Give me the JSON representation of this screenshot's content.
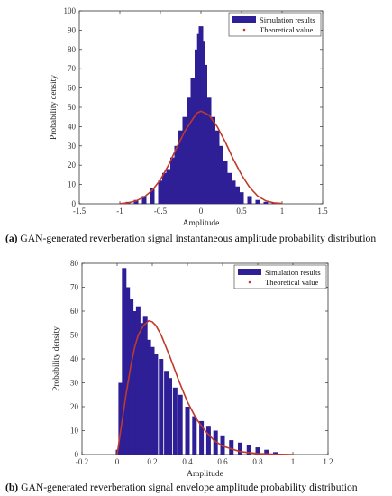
{
  "colors": {
    "bar": "#2e1f96",
    "curve": "#c0392b",
    "axis": "#333333"
  },
  "charts": [
    {
      "caption_label": "(a)",
      "caption_text": " GAN-generated reverberation signal instantaneous amplitude probability distribution"
    },
    {
      "caption_label": "(b)",
      "caption_text": " GAN-generated reverberation signal envelope amplitude probability distribution"
    }
  ],
  "chart_data": [
    {
      "type": "bar",
      "title": "",
      "xlabel": "Amplitude",
      "ylabel": "Probability density",
      "xlim": [
        -1.5,
        1.5
      ],
      "ylim": [
        0,
        100
      ],
      "xticks": [
        "-1.5",
        "-1",
        "-0.5",
        "0",
        "0.5",
        "1",
        "1.5"
      ],
      "yticks": [
        "0",
        "10",
        "20",
        "30",
        "40",
        "50",
        "60",
        "70",
        "80",
        "90",
        "100"
      ],
      "legend_position": "top-right",
      "series": [
        {
          "name": "Simulation results",
          "kind": "histogram",
          "x": [
            -0.9,
            -0.8,
            -0.7,
            -0.6,
            -0.5,
            -0.45,
            -0.4,
            -0.35,
            -0.3,
            -0.25,
            -0.2,
            -0.15,
            -0.1,
            -0.05,
            -0.02,
            0.0,
            0.02,
            0.05,
            0.1,
            0.15,
            0.2,
            0.25,
            0.3,
            0.35,
            0.4,
            0.45,
            0.5,
            0.6,
            0.7,
            0.8,
            0.9
          ],
          "values": [
            1,
            2,
            4,
            8,
            12,
            16,
            18,
            24,
            30,
            38,
            45,
            55,
            65,
            80,
            88,
            92,
            84,
            72,
            55,
            45,
            38,
            30,
            22,
            16,
            12,
            9,
            6,
            4,
            2,
            1,
            0.5
          ]
        },
        {
          "name": "Theoretical value",
          "kind": "curve",
          "x": [
            -1.0,
            -0.9,
            -0.8,
            -0.7,
            -0.6,
            -0.5,
            -0.4,
            -0.3,
            -0.2,
            -0.1,
            -0.05,
            0.0,
            0.1,
            0.2,
            0.3,
            0.4,
            0.5,
            0.6,
            0.7,
            0.8,
            0.9,
            1.0
          ],
          "values": [
            0.1,
            0.5,
            1.5,
            3.5,
            7,
            12.5,
            20,
            29,
            37.5,
            44,
            47,
            48,
            46,
            40,
            32,
            23,
            15,
            8.5,
            4,
            1.5,
            0.5,
            0.2
          ]
        }
      ]
    },
    {
      "type": "bar",
      "title": "",
      "xlabel": "Amplitude",
      "ylabel": "Probability density",
      "xlim": [
        -0.2,
        1.2
      ],
      "ylim": [
        0,
        80
      ],
      "xticks": [
        "-0.2",
        "0",
        "0.2",
        "0.4",
        "0.6",
        "0.8",
        "1",
        "1.2"
      ],
      "yticks": [
        "0",
        "10",
        "20",
        "30",
        "40",
        "50",
        "60",
        "70",
        "80"
      ],
      "legend_position": "top-right",
      "series": [
        {
          "name": "Simulation results",
          "kind": "histogram",
          "x": [
            0.005,
            0.02,
            0.04,
            0.06,
            0.08,
            0.1,
            0.12,
            0.14,
            0.16,
            0.18,
            0.2,
            0.22,
            0.25,
            0.28,
            0.3,
            0.33,
            0.36,
            0.4,
            0.44,
            0.48,
            0.52,
            0.56,
            0.6,
            0.65,
            0.7,
            0.75,
            0.8,
            0.85,
            0.9
          ],
          "values": [
            2,
            30,
            78,
            70,
            65,
            60,
            62,
            55,
            58,
            48,
            45,
            42,
            40,
            35,
            32,
            28,
            25,
            20,
            16,
            14,
            12,
            10,
            8,
            6,
            5,
            4,
            3,
            2,
            1
          ]
        },
        {
          "name": "Theoretical value",
          "kind": "curve",
          "x": [
            0.0,
            0.02,
            0.05,
            0.08,
            0.1,
            0.12,
            0.15,
            0.18,
            0.2,
            0.22,
            0.25,
            0.3,
            0.35,
            0.4,
            0.45,
            0.5,
            0.55,
            0.6,
            0.7,
            0.8,
            0.9,
            1.0
          ],
          "values": [
            0,
            10,
            25,
            38,
            45,
            50,
            54,
            56,
            55.5,
            54,
            50,
            41,
            31,
            22,
            15,
            10,
            6,
            3.5,
            1.2,
            0.4,
            0.1,
            0
          ]
        }
      ]
    }
  ]
}
